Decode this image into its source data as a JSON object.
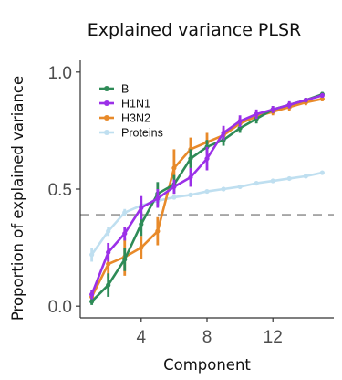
{
  "chart_data": {
    "type": "line",
    "title": "Explained variance PLSR",
    "xlabel": "Component",
    "ylabel": "Proportion of explained variance",
    "xlim": [
      0.3,
      15.7
    ],
    "ylim": [
      -0.05,
      1.05
    ],
    "xticks": [
      4,
      8,
      12
    ],
    "yticks": [
      0.0,
      0.5,
      1.0
    ],
    "ytick_labels": [
      "0.0",
      "0.5",
      "1.0"
    ],
    "reference_line": {
      "y": 0.39,
      "style": "dashed",
      "color": "#a6a6a6"
    },
    "legend_position": "top-left",
    "series": [
      {
        "name": "B",
        "color": "#2e8b57",
        "x": [
          1,
          2,
          3,
          4,
          5,
          6,
          7,
          8,
          9,
          10,
          11,
          12,
          13,
          14,
          15
        ],
        "y": [
          0.02,
          0.09,
          0.2,
          0.35,
          0.48,
          0.52,
          0.63,
          0.68,
          0.71,
          0.76,
          0.8,
          0.84,
          0.86,
          0.88,
          0.905
        ],
        "err": [
          0.015,
          0.05,
          0.05,
          0.05,
          0.05,
          0.04,
          0.04,
          0.03,
          0.025,
          0.02,
          0.02,
          0.015,
          0.012,
          0.01,
          0.01
        ]
      },
      {
        "name": "H1N1",
        "color": "#9b30e8",
        "x": [
          1,
          2,
          3,
          4,
          5,
          6,
          7,
          8,
          9,
          10,
          11,
          12,
          13,
          14,
          15
        ],
        "y": [
          0.05,
          0.23,
          0.31,
          0.42,
          0.46,
          0.51,
          0.55,
          0.63,
          0.74,
          0.79,
          0.82,
          0.84,
          0.86,
          0.88,
          0.9
        ],
        "err": [
          0.02,
          0.04,
          0.03,
          0.05,
          0.04,
          0.03,
          0.04,
          0.05,
          0.03,
          0.025,
          0.02,
          0.015,
          0.015,
          0.01,
          0.01
        ]
      },
      {
        "name": "H3N2",
        "color": "#e88a2a",
        "x": [
          1,
          2,
          3,
          4,
          5,
          6,
          7,
          8,
          9,
          10,
          11,
          12,
          13,
          14,
          15
        ],
        "y": [
          0.04,
          0.18,
          0.21,
          0.25,
          0.32,
          0.59,
          0.67,
          0.7,
          0.73,
          0.78,
          0.81,
          0.83,
          0.85,
          0.87,
          0.885
        ],
        "err": [
          0.02,
          0.06,
          0.08,
          0.05,
          0.06,
          0.08,
          0.05,
          0.04,
          0.03,
          0.025,
          0.02,
          0.015,
          0.015,
          0.012,
          0.01
        ]
      },
      {
        "name": "Proteins",
        "color": "#bfdff0",
        "x": [
          1,
          2,
          3,
          4,
          5,
          6,
          7,
          8,
          9,
          10,
          11,
          12,
          13,
          14,
          15
        ],
        "y": [
          0.22,
          0.32,
          0.4,
          0.43,
          0.45,
          0.465,
          0.475,
          0.49,
          0.5,
          0.51,
          0.525,
          0.535,
          0.545,
          0.555,
          0.57
        ],
        "err": [
          0.03,
          0.02,
          0.015,
          0.012,
          0.01,
          0.01,
          0.008,
          0.008,
          0.007,
          0.007,
          0.006,
          0.006,
          0.005,
          0.005,
          0.005
        ]
      }
    ]
  }
}
